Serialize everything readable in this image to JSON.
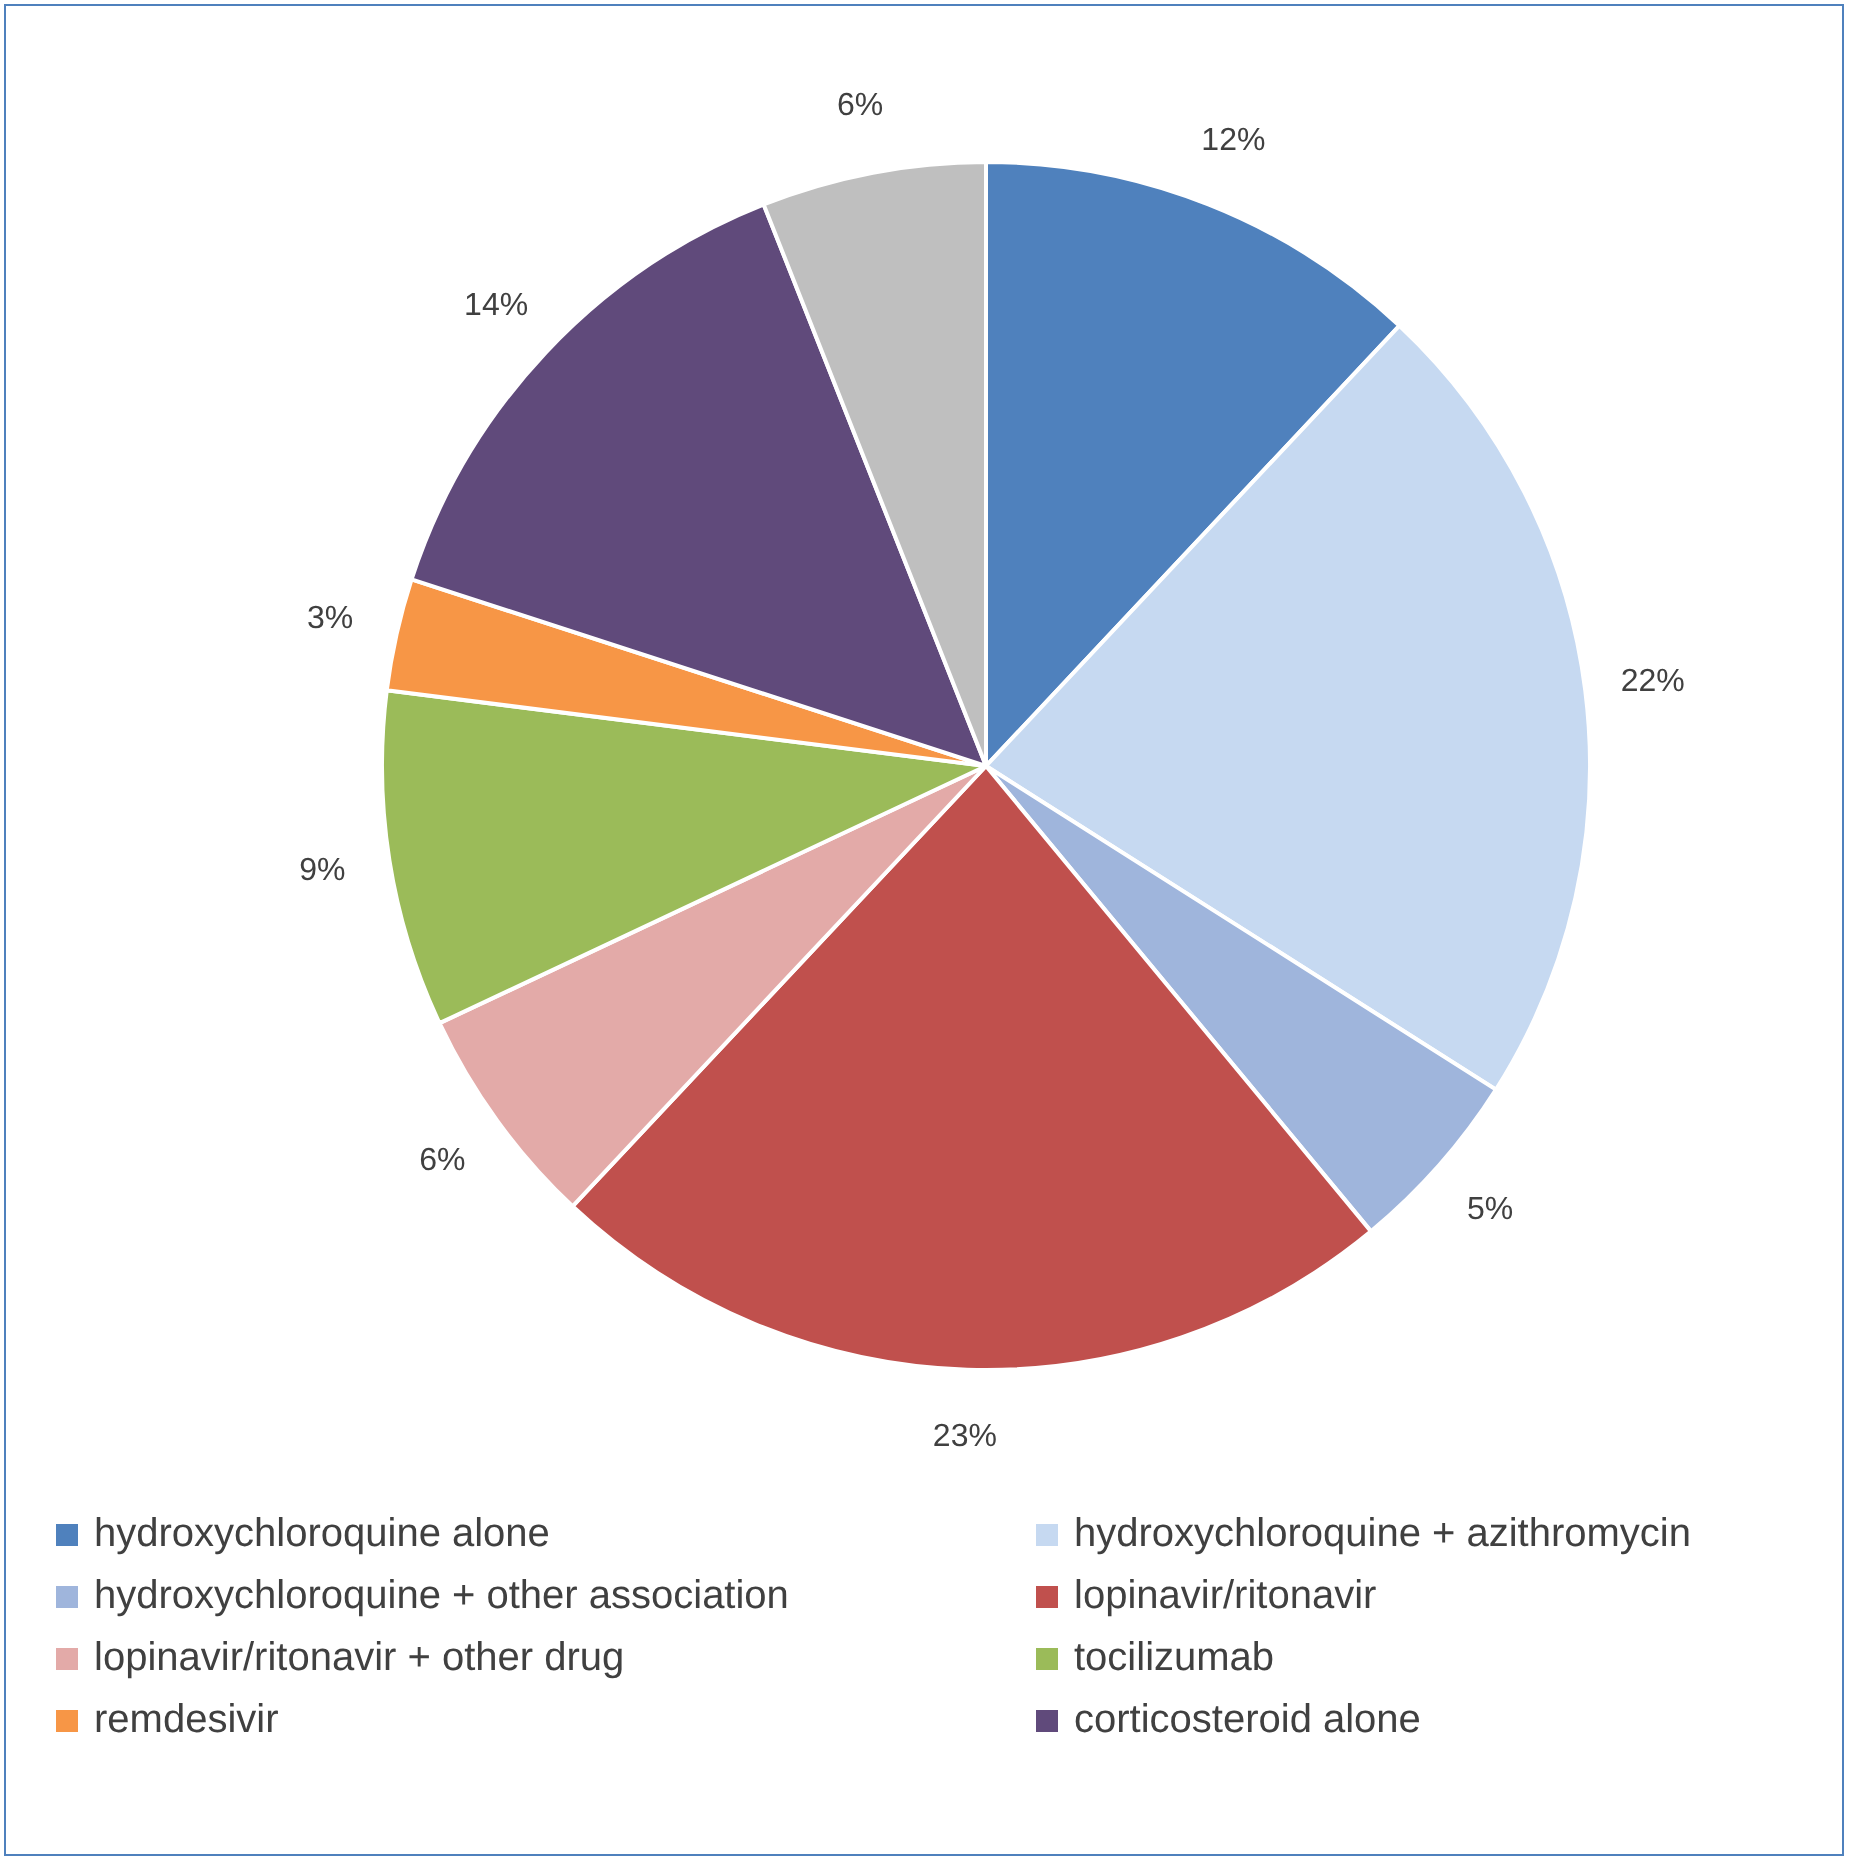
{
  "chart_data": {
    "type": "pie",
    "categories": [
      "hydroxychloroquine alone",
      "hydroxychloroquine + azithromycin",
      "hydroxychloroquine + other association",
      "lopinavir/ritonavir",
      "lopinavir/ritonavir + other drug",
      "tocilizumab",
      "remdesivir",
      "corticosteroid alone",
      null
    ],
    "values": [
      12,
      22,
      5,
      23,
      6,
      9,
      3,
      14,
      6
    ],
    "colors": [
      "#4f81bd",
      "#c6d9f1",
      "#9fb5dc",
      "#c0504d",
      "#e3aaa8",
      "#9bbb59",
      "#f79646",
      "#604a7b",
      "#bfbfbf"
    ],
    "value_labels": [
      "12%",
      "22%",
      "5%",
      "23%",
      "6%",
      "9%",
      "3%",
      "14%",
      "6%"
    ],
    "legend": "bottom"
  }
}
